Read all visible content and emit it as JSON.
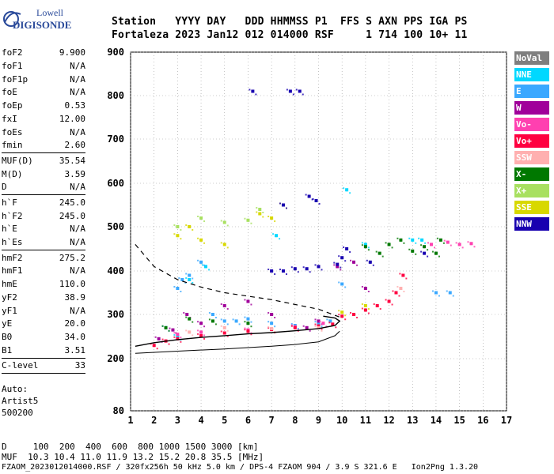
{
  "logo": {
    "line1": "Lowell",
    "line2": "DIGISONDE"
  },
  "header": {
    "line1": "Station   YYYY DAY   DDD HHMMSS P1  FFS S AXN PPS IGA PS",
    "line2": "Fortaleza 2023 Jan12 012 014000 RSF     1 714 100 10+ 11"
  },
  "params": [
    {
      "k": "foF2",
      "v": "9.900"
    },
    {
      "k": "foF1",
      "v": "N/A"
    },
    {
      "k": "foF1p",
      "v": "N/A"
    },
    {
      "k": "foE",
      "v": "N/A"
    },
    {
      "k": "foEp",
      "v": "0.53"
    },
    {
      "k": "fxI",
      "v": "12.00"
    },
    {
      "k": "foEs",
      "v": "N/A"
    },
    {
      "k": "fmin",
      "v": "2.60"
    },
    {
      "k": "MUF(D)",
      "v": "35.54"
    },
    {
      "k": "M(D)",
      "v": "3.59"
    },
    {
      "k": "D",
      "v": "N/A"
    },
    {
      "k": "h`F",
      "v": "245.0"
    },
    {
      "k": "h`F2",
      "v": "245.0"
    },
    {
      "k": "h`E",
      "v": "N/A"
    },
    {
      "k": "h`Es",
      "v": "N/A"
    },
    {
      "k": "hmF2",
      "v": "275.2"
    },
    {
      "k": "hmF1",
      "v": "N/A"
    },
    {
      "k": "hmE",
      "v": "110.0"
    },
    {
      "k": "yF2",
      "v": "38.9"
    },
    {
      "k": "yF1",
      "v": "N/A"
    },
    {
      "k": "yE",
      "v": "20.0"
    },
    {
      "k": "B0",
      "v": "34.0"
    },
    {
      "k": "B1",
      "v": "3.51"
    },
    {
      "k": "C-level",
      "v": "33"
    }
  ],
  "auto": {
    "l1": "Auto:",
    "l2": "Artist5",
    "l3": "500200"
  },
  "legend": [
    {
      "label": "NoVal",
      "color": "#7f7f7f"
    },
    {
      "label": "NNE",
      "color": "#00d8ff"
    },
    {
      "label": "E",
      "color": "#3aa8ff"
    },
    {
      "label": "W",
      "color": "#a0009a"
    },
    {
      "label": "Vo-",
      "color": "#ff40b0"
    },
    {
      "label": "Vo+",
      "color": "#ff0040"
    },
    {
      "label": "SSW",
      "color": "#ffb0b0"
    },
    {
      "label": "X-",
      "color": "#007800"
    },
    {
      "label": "X+",
      "color": "#a8e060"
    },
    {
      "label": "SSE",
      "color": "#d8d800"
    },
    {
      "label": "NNW",
      "color": "#1800b0"
    }
  ],
  "footer": {
    "line1": "D     100  200  400  600  800 1000 1500 3000 [km]",
    "line2": "MUF  10.3 10.4 11.0 11.9 13.2 15.2 20.8 35.5 [MHz]",
    "line3": "FZAOM_2023012014000.RSF / 320fx256h 50 kHz 5.0 km / DPS-4 FZAOM 904 / 3.9 S 321.6 E   Ion2Png 1.3.20"
  },
  "chart_data": {
    "type": "scatter",
    "xlim": [
      1,
      17
    ],
    "ylim": [
      80,
      900
    ],
    "xticks": [
      1,
      2,
      3,
      4,
      5,
      6,
      7,
      8,
      9,
      10,
      11,
      12,
      13,
      14,
      15,
      16,
      17
    ],
    "yticks": [
      80,
      200,
      300,
      400,
      500,
      600,
      700,
      800,
      900
    ],
    "series": [
      {
        "name": "NNE",
        "color": "#00d8ff",
        "points": [
          [
            3,
            250
          ],
          [
            3.5,
            380
          ],
          [
            4.2,
            410
          ],
          [
            13,
            470
          ],
          [
            13.4,
            470
          ],
          [
            10.2,
            585
          ],
          [
            11,
            460
          ],
          [
            7.2,
            480
          ]
        ]
      },
      {
        "name": "E",
        "color": "#3aa8ff",
        "points": [
          [
            2.5,
            270
          ],
          [
            3,
            360
          ],
          [
            3.2,
            380
          ],
          [
            3.5,
            390
          ],
          [
            4,
            420
          ],
          [
            4.5,
            300
          ],
          [
            5,
            285
          ],
          [
            5.5,
            285
          ],
          [
            6,
            290
          ],
          [
            7,
            280
          ],
          [
            8,
            275
          ],
          [
            9,
            280
          ],
          [
            9.5,
            285
          ],
          [
            10,
            370
          ],
          [
            14,
            350
          ],
          [
            14.6,
            350
          ]
        ]
      },
      {
        "name": "W",
        "color": "#a0009a",
        "points": [
          [
            2.2,
            245
          ],
          [
            2.8,
            265
          ],
          [
            3.4,
            300
          ],
          [
            4,
            280
          ],
          [
            5,
            320
          ],
          [
            6,
            330
          ],
          [
            7,
            300
          ],
          [
            8.5,
            270
          ],
          [
            9,
            285
          ],
          [
            9.8,
            410
          ],
          [
            10.5,
            420
          ],
          [
            11,
            360
          ]
        ]
      },
      {
        "name": "Vo-",
        "color": "#ff40b0",
        "points": [
          [
            3,
            255
          ],
          [
            4,
            260
          ],
          [
            6,
            265
          ],
          [
            8,
            272
          ],
          [
            9.2,
            280
          ],
          [
            13.8,
            460
          ],
          [
            14.5,
            465
          ],
          [
            15,
            460
          ],
          [
            15.5,
            462
          ]
        ]
      },
      {
        "name": "Vo+",
        "color": "#ff0040",
        "points": [
          [
            2,
            230
          ],
          [
            2.5,
            240
          ],
          [
            3,
            245
          ],
          [
            4,
            252
          ],
          [
            5,
            258
          ],
          [
            6,
            262
          ],
          [
            7,
            266
          ],
          [
            8,
            270
          ],
          [
            9,
            274
          ],
          [
            9.6,
            278
          ],
          [
            10,
            296
          ],
          [
            10.5,
            300
          ],
          [
            11,
            310
          ],
          [
            11.5,
            320
          ],
          [
            12,
            330
          ],
          [
            12.3,
            350
          ],
          [
            12.6,
            390
          ]
        ]
      },
      {
        "name": "SSW",
        "color": "#ffb0b0",
        "points": [
          [
            3.5,
            260
          ],
          [
            5,
            270
          ],
          [
            7,
            268
          ],
          [
            9,
            270
          ],
          [
            12.5,
            360
          ]
        ]
      },
      {
        "name": "X-",
        "color": "#007800",
        "points": [
          [
            2.5,
            270
          ],
          [
            3.5,
            290
          ],
          [
            4.5,
            285
          ],
          [
            6,
            280
          ],
          [
            11,
            455
          ],
          [
            11.6,
            440
          ],
          [
            12,
            460
          ],
          [
            12.5,
            470
          ],
          [
            13,
            445
          ],
          [
            13.5,
            455
          ],
          [
            14,
            440
          ],
          [
            14.2,
            470
          ]
        ]
      },
      {
        "name": "X+",
        "color": "#a8e060",
        "points": [
          [
            3,
            500
          ],
          [
            4,
            520
          ],
          [
            5,
            510
          ],
          [
            6,
            515
          ],
          [
            6.5,
            540
          ]
        ]
      },
      {
        "name": "SSE",
        "color": "#d8d800",
        "points": [
          [
            3,
            480
          ],
          [
            3.5,
            500
          ],
          [
            4,
            470
          ],
          [
            5,
            460
          ],
          [
            6.5,
            530
          ],
          [
            7,
            520
          ],
          [
            7.5,
            550
          ],
          [
            10,
            305
          ],
          [
            11,
            320
          ]
        ]
      },
      {
        "name": "NNW",
        "color": "#1800b0",
        "points": [
          [
            7,
            400
          ],
          [
            7.5,
            400
          ],
          [
            8,
            405
          ],
          [
            8.5,
            405
          ],
          [
            9,
            410
          ],
          [
            8.6,
            570
          ],
          [
            8.9,
            560
          ],
          [
            7.5,
            550
          ],
          [
            6.2,
            810
          ],
          [
            7.8,
            810
          ],
          [
            8.2,
            810
          ],
          [
            9.8,
            415
          ],
          [
            10,
            430
          ],
          [
            10.2,
            450
          ],
          [
            11.2,
            420
          ],
          [
            13.5,
            440
          ]
        ]
      }
    ],
    "profile": [
      [
        1.2,
        228
      ],
      [
        2,
        236
      ],
      [
        3,
        243
      ],
      [
        4,
        248
      ],
      [
        5,
        252
      ],
      [
        6,
        256
      ],
      [
        7,
        259
      ],
      [
        8,
        263
      ],
      [
        9,
        268
      ],
      [
        9.7,
        275
      ],
      [
        9.9,
        285
      ],
      [
        9.7,
        292
      ],
      [
        9.2,
        296
      ]
    ],
    "dashed_curve": [
      [
        1.2,
        460
      ],
      [
        2,
        410
      ],
      [
        3,
        380
      ],
      [
        4,
        363
      ],
      [
        5,
        350
      ],
      [
        6,
        342
      ],
      [
        7,
        334
      ],
      [
        8,
        323
      ],
      [
        9,
        312
      ],
      [
        9.9,
        294
      ]
    ],
    "solid_lower": [
      [
        1.2,
        212
      ],
      [
        3,
        217
      ],
      [
        5,
        222
      ],
      [
        7,
        228
      ],
      [
        8,
        232
      ],
      [
        9,
        238
      ],
      [
        9.7,
        252
      ],
      [
        9.9,
        262
      ]
    ]
  }
}
